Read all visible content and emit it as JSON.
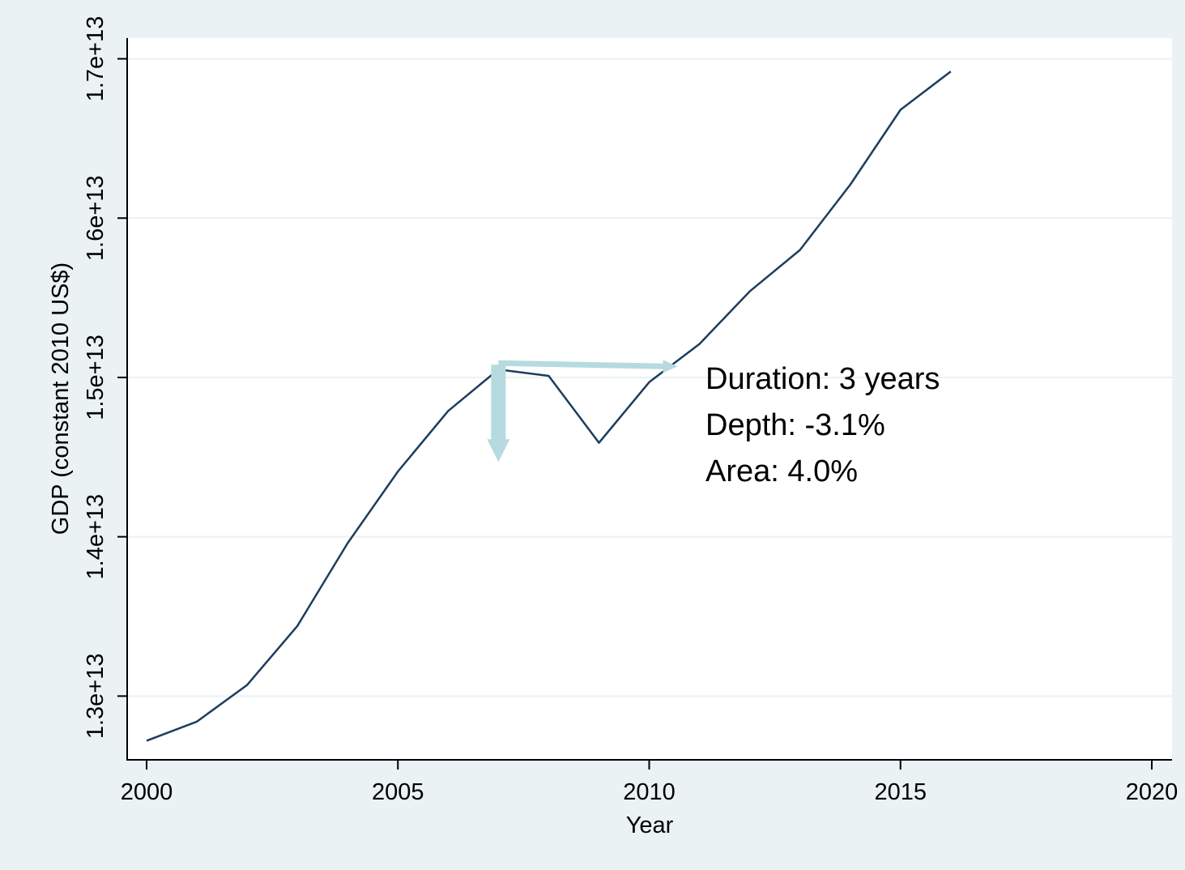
{
  "chart_data": {
    "type": "line",
    "xlabel": "Year",
    "ylabel": "GDP (constant 2010 US$)",
    "xlim": [
      2000,
      2020
    ],
    "ylim": [
      12600000000000,
      17130000000000
    ],
    "x_ticks": [
      2000,
      2005,
      2010,
      2015,
      2020
    ],
    "x_tick_labels": [
      "2000",
      "2005",
      "2010",
      "2015",
      "2020"
    ],
    "y_ticks": [
      13000000000000,
      14000000000000,
      15000000000000,
      16000000000000,
      17000000000000
    ],
    "y_tick_labels": [
      "1.3e+13",
      "1.4e+13",
      "1.5e+13",
      "1.6e+13",
      "1.7e+13"
    ],
    "grid": "horizontal",
    "legend": "none",
    "series": [
      {
        "x": [
          2000,
          2001,
          2002,
          2003,
          2004,
          2005,
          2006,
          2007,
          2008,
          2009,
          2010,
          2011,
          2012,
          2013,
          2014,
          2015,
          2016
        ],
        "values": [
          12720000000000,
          12840000000000,
          13070000000000,
          13440000000000,
          13960000000000,
          14410000000000,
          14790000000000,
          15050000000000,
          15010000000000,
          14590000000000,
          14970000000000,
          15210000000000,
          15540000000000,
          15800000000000,
          16210000000000,
          16680000000000,
          16920000000000
        ],
        "color": "#1c3d5e"
      }
    ],
    "annotations": {
      "lines": [
        "Duration: 3 years",
        "Depth: -3.1%",
        "Area: 4.0%"
      ],
      "arrow_color": "#b5dadf",
      "horizontal_arrow": {
        "x_start": 2007,
        "x_end": 2010.5,
        "y": 15080000000000
      },
      "vertical_arrow": {
        "x": 2007,
        "y_start": 15080000000000,
        "y_end": 14470000000000
      }
    },
    "colors": {
      "outer_background": "#eaf2f3",
      "plot_background": "#ffffff",
      "gridline": "#eaf2f3",
      "axis": "#000000"
    }
  }
}
